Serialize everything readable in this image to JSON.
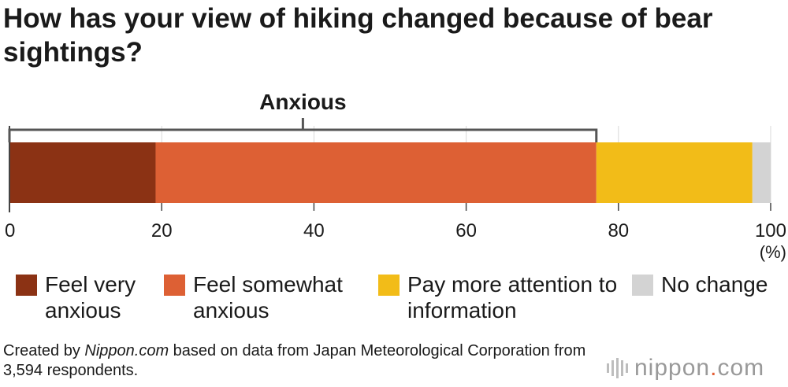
{
  "title": "How has your view of hiking changed because of bear sightings?",
  "chart_data": {
    "type": "bar",
    "orientation": "horizontal-stacked",
    "title": "How has your view of hiking changed because of bear sightings?",
    "unit": "(%)",
    "xlim": [
      0,
      100
    ],
    "x_ticks": [
      "0",
      "20",
      "40",
      "60",
      "80",
      "100"
    ],
    "series": [
      {
        "name": "Feel very anxious",
        "value": 19.2,
        "color": "#8b3214"
      },
      {
        "name": "Feel somewhat anxious",
        "value": 57.9,
        "color": "#dd6034"
      },
      {
        "name": "Pay more attention to information",
        "value": 20.5,
        "color": "#f2bc18"
      },
      {
        "name": "No change",
        "value": 2.4,
        "color": "#d3d3d3"
      }
    ],
    "annotation": {
      "label": "Anxious",
      "from": 0,
      "to": 77.1
    }
  },
  "legend": [
    {
      "label": "Feel very anxious",
      "color": "#8b3214"
    },
    {
      "label": "Feel somewhat anxious",
      "color": "#dd6034"
    },
    {
      "label": "Pay more attention to information",
      "color": "#f2bc18"
    },
    {
      "label": "No change",
      "color": "#d3d3d3"
    }
  ],
  "note": {
    "prefix": "Created by ",
    "source_name": "Nippon.com",
    "suffix": " based on data from Japan Meteorological Corporation from 3,594 respondents."
  },
  "logo": {
    "name": "nippon",
    "dot": ".",
    "tld": "com"
  }
}
